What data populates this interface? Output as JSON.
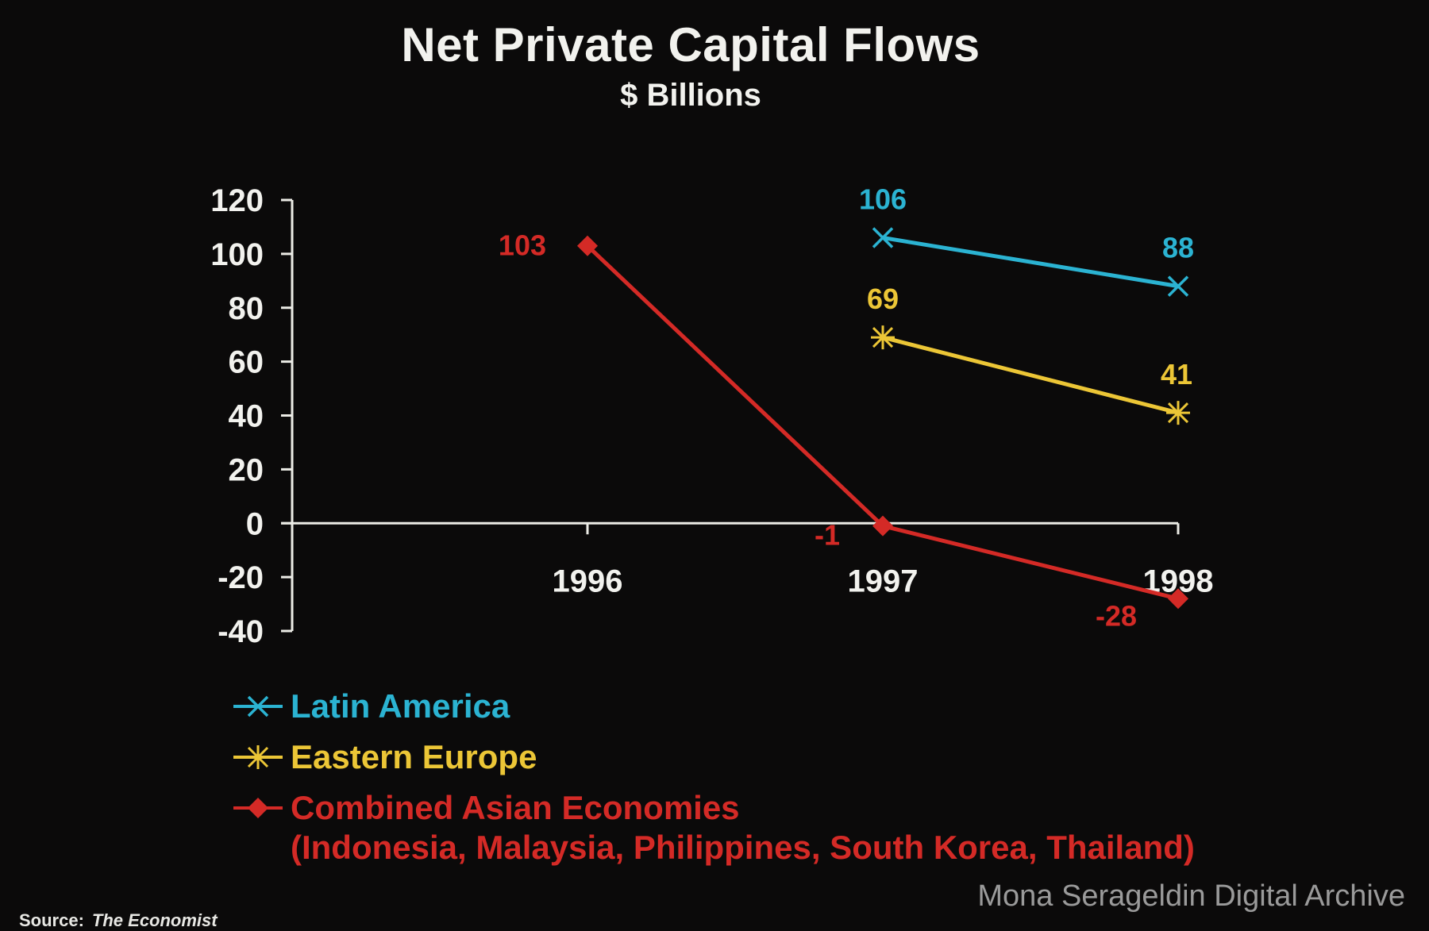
{
  "chart_data": {
    "type": "line",
    "title": "Net Private Capital Flows",
    "subtitle": "$ Billions",
    "xlabel": "",
    "ylabel": "",
    "ylim": [
      -40,
      120
    ],
    "yticks": [
      120,
      100,
      80,
      60,
      40,
      20,
      0,
      -20,
      -40
    ],
    "ytick_labels": [
      "120",
      "100",
      "80",
      "60",
      "40",
      "20",
      "0",
      "-20",
      "-40"
    ],
    "categories": [
      "1996",
      "1997",
      "1998"
    ],
    "series": [
      {
        "name": "Latin America",
        "color": "#2bb3d2",
        "marker": "x",
        "x": [
          "1997",
          "1998"
        ],
        "values": [
          106,
          88
        ],
        "labels": [
          "106",
          "88"
        ]
      },
      {
        "name": "Eastern Europe",
        "color": "#ecc636",
        "marker": "asterisk",
        "x": [
          "1997",
          "1998"
        ],
        "values": [
          69,
          41
        ],
        "labels": [
          "69",
          "41"
        ]
      },
      {
        "name": "Combined Asian Economies",
        "color": "#d42a26",
        "marker": "diamond",
        "x": [
          "1996",
          "1997",
          "1998"
        ],
        "values": [
          103,
          -1,
          -28
        ],
        "labels": [
          "103",
          "-1",
          "-28"
        ]
      }
    ],
    "legend_note": "(Indonesia, Malaysia, Philippines, South Korea, Thailand)",
    "legend_position": "bottom-left"
  },
  "source": {
    "label": "Source:",
    "name": "The Economist"
  },
  "watermark": "Mona Serageldin Digital Archive"
}
